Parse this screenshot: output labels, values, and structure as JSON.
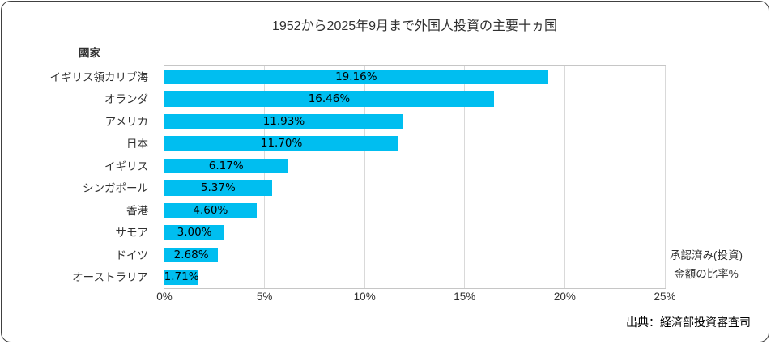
{
  "chart_data": {
    "type": "bar",
    "orientation": "horizontal",
    "title": "1952から2025年9月まで外国人投資の主要十ヵ国",
    "ylabel": "國家",
    "xlabel": "承認済み(投資)金額の比率%",
    "note_lines": [
      "承認済み(投資)",
      "金額の比率%"
    ],
    "source": "出典：経済部投資審査司",
    "categories": [
      "イギリス領カリブ海",
      "オランダ",
      "アメリカ",
      "日本",
      "イギリス",
      "シンガポール",
      "香港",
      "サモア",
      "ドイツ",
      "オーストラリア"
    ],
    "values": [
      19.16,
      16.46,
      11.93,
      11.7,
      6.17,
      5.37,
      4.6,
      3.0,
      2.68,
      1.71
    ],
    "value_labels": [
      "19.16%",
      "16.46%",
      "11.93%",
      "11.70%",
      "6.17%",
      "5.37%",
      "4.60%",
      "3.00%",
      "2.68%",
      "1.71%"
    ],
    "xlim": [
      0,
      25
    ],
    "x_ticks": [
      0,
      5,
      10,
      15,
      20,
      25
    ],
    "x_tick_labels": [
      "0%",
      "5%",
      "10%",
      "15%",
      "20%",
      "25%"
    ],
    "grid": "vertical-only",
    "legend": "none",
    "data_label_position": "inside-center"
  },
  "colors": {
    "bar": "#00BEF0",
    "grid": "#D9D9D9",
    "plot_border": "#C6C6C6",
    "frame_border": "#404040",
    "text": "#303030"
  }
}
